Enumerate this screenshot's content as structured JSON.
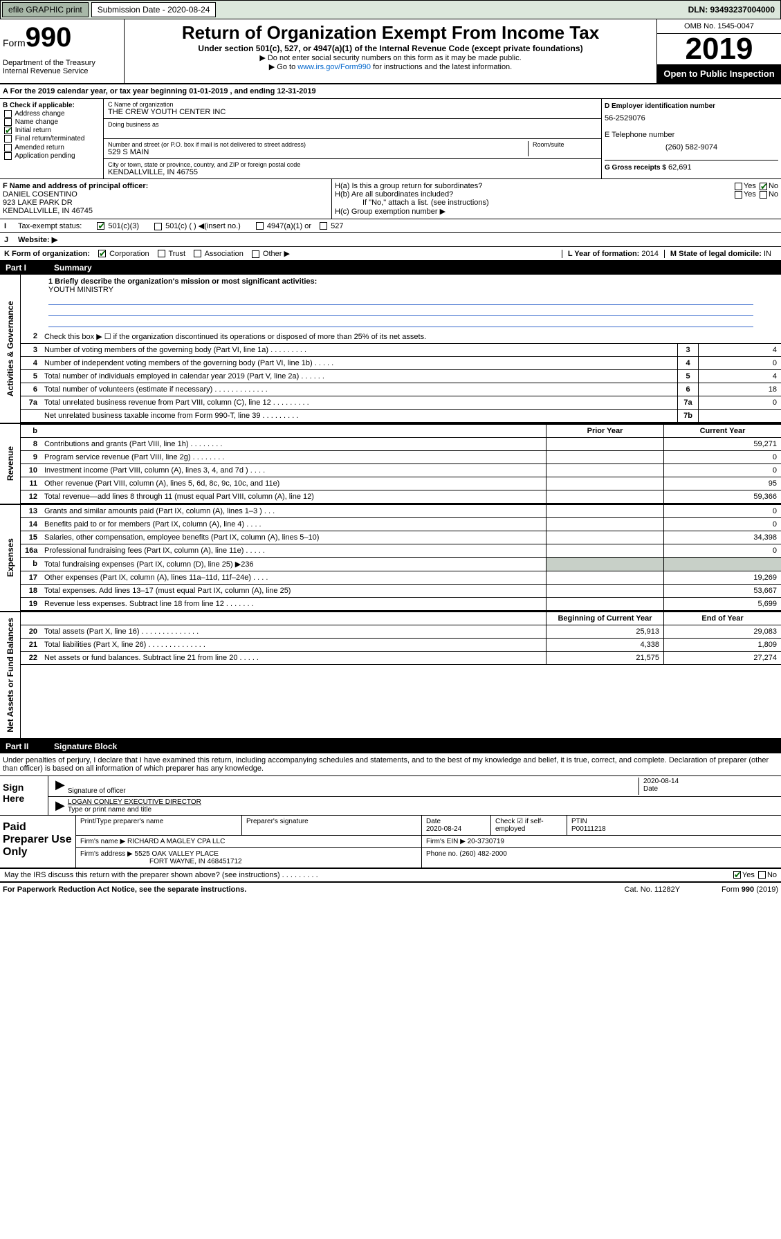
{
  "top_bar": {
    "efile": "efile GRAPHIC print",
    "sub_label": "Submission Date - 2020-08-24",
    "dln": "DLN: 93493237004000"
  },
  "header": {
    "form": "Form",
    "num": "990",
    "dept": "Department of the Treasury Internal Revenue Service",
    "title": "Return of Organization Exempt From Income Tax",
    "sub": "Under section 501(c), 527, or 4947(a)(1) of the Internal Revenue Code (except private foundations)",
    "note1": "▶ Do not enter social security numbers on this form as it may be made public.",
    "note2_pre": "▶ Go to ",
    "note2_link": "www.irs.gov/Form990",
    "note2_post": " for instructions and the latest information.",
    "omb": "OMB No. 1545-0047",
    "year": "2019",
    "open": "Open to Public Inspection"
  },
  "period": "A For the 2019 calendar year, or tax year beginning 01-01-2019   , and ending 12-31-2019",
  "box_b": {
    "title": "B Check if applicable:",
    "addr": "Address change",
    "name": "Name change",
    "initial": "Initial return",
    "final": "Final return/terminated",
    "amended": "Amended return",
    "app": "Application pending"
  },
  "box_c": {
    "name_lbl": "C Name of organization",
    "name": "THE CREW YOUTH CENTER INC",
    "dba_lbl": "Doing business as",
    "street_lbl": "Number and street (or P.O. box if mail is not delivered to street address)",
    "room_lbl": "Room/suite",
    "street": "529 S MAIN",
    "city_lbl": "City or town, state or province, country, and ZIP or foreign postal code",
    "city": "KENDALLVILLE, IN  46755"
  },
  "box_d": {
    "lbl": "D Employer identification number",
    "val": "56-2529076"
  },
  "box_e": {
    "lbl": "E Telephone number",
    "val": "(260) 582-9074"
  },
  "box_g": {
    "lbl": "G Gross receipts $",
    "val": "62,691"
  },
  "box_f": {
    "lbl": "F  Name and address of principal officer:",
    "v1": "DANIEL COSENTINO",
    "v2": "923 LAKE PARK DR",
    "v3": "KENDALLVILLE, IN  46745"
  },
  "box_h": {
    "a": "H(a)  Is this a group return for subordinates?",
    "b": "H(b)  Are all subordinates included?",
    "note": "If \"No,\" attach a list. (see instructions)",
    "c": "H(c)  Group exemption number ▶"
  },
  "tax_status": {
    "lbl": "Tax-exempt status:",
    "o1": "501(c)(3)",
    "o2": "501(c) (  ) ◀(insert no.)",
    "o3": "4947(a)(1) or",
    "o4": "527"
  },
  "website": "Website: ▶",
  "box_k": "K Form of organization:",
  "k_opts": {
    "corp": "Corporation",
    "trust": "Trust",
    "assoc": "Association",
    "other": "Other ▶"
  },
  "box_l": {
    "lbl": "L Year of formation:",
    "val": "2014"
  },
  "box_m": {
    "lbl": "M State of legal domicile:",
    "val": "IN"
  },
  "part1": {
    "num": "Part I",
    "title": "Summary"
  },
  "mission": {
    "q": "1  Briefly describe the organization's mission or most significant activities:",
    "val": "YOUTH MINISTRY"
  },
  "lines_gov": [
    {
      "n": "2",
      "t": "Check this box ▶ ☐  if the organization discontinued its operations or disposed of more than 25% of its net assets."
    },
    {
      "n": "3",
      "t": "Number of voting members of the governing body (Part VI, line 1a)   .    .    .    .    .    .    .    .    .",
      "bn": "3",
      "bv": "4"
    },
    {
      "n": "4",
      "t": "Number of independent voting members of the governing body (Part VI, line 1b)   .    .    .    .    .",
      "bn": "4",
      "bv": "0"
    },
    {
      "n": "5",
      "t": "Total number of individuals employed in calendar year 2019 (Part V, line 2a)   .    .    .    .    .    .",
      "bn": "5",
      "bv": "4"
    },
    {
      "n": "6",
      "t": "Total number of volunteers (estimate if necessary)   .    .    .    .    .    .    .    .    .    .    .    .    .",
      "bn": "6",
      "bv": "18"
    },
    {
      "n": "7a",
      "t": "Total unrelated business revenue from Part VIII, column (C), line 12   .    .    .    .    .    .    .    .    .",
      "bn": "7a",
      "bv": "0"
    },
    {
      "n": "",
      "t": "Net unrelated business taxable income from Form 990-T, line 39   .    .    .    .    .    .    .    .    .",
      "bn": "7b",
      "bv": ""
    }
  ],
  "col_headers": {
    "prior": "Prior Year",
    "current": "Current Year"
  },
  "lines_rev": [
    {
      "n": "8",
      "t": "Contributions and grants (Part VIII, line 1h)   .    .    .    .    .    .    .    .",
      "c1": "",
      "c2": "59,271"
    },
    {
      "n": "9",
      "t": "Program service revenue (Part VIII, line 2g)   .    .    .    .    .    .    .    .",
      "c1": "",
      "c2": "0"
    },
    {
      "n": "10",
      "t": "Investment income (Part VIII, column (A), lines 3, 4, and 7d )   .    .    .    .",
      "c1": "",
      "c2": "0"
    },
    {
      "n": "11",
      "t": "Other revenue (Part VIII, column (A), lines 5, 6d, 8c, 9c, 10c, and 11e)",
      "c1": "",
      "c2": "95"
    },
    {
      "n": "12",
      "t": "Total revenue—add lines 8 through 11 (must equal Part VIII, column (A), line 12)",
      "c1": "",
      "c2": "59,366"
    }
  ],
  "lines_exp": [
    {
      "n": "13",
      "t": "Grants and similar amounts paid (Part IX, column (A), lines 1–3 )   .    .    .",
      "c1": "",
      "c2": "0"
    },
    {
      "n": "14",
      "t": "Benefits paid to or for members (Part IX, column (A), line 4)   .    .    .    .",
      "c1": "",
      "c2": "0"
    },
    {
      "n": "15",
      "t": "Salaries, other compensation, employee benefits (Part IX, column (A), lines 5–10)",
      "c1": "",
      "c2": "34,398"
    },
    {
      "n": "16a",
      "t": "Professional fundraising fees (Part IX, column (A), line 11e)   .    .    .    .    .",
      "c1": "",
      "c2": "0"
    },
    {
      "n": "b",
      "t": "Total fundraising expenses (Part IX, column (D), line 25)  ▶236",
      "c1": "shaded",
      "c2": "shaded"
    },
    {
      "n": "17",
      "t": "Other expenses (Part IX, column (A), lines 11a–11d, 11f–24e)   .    .    .    .",
      "c1": "",
      "c2": "19,269"
    },
    {
      "n": "18",
      "t": "Total expenses. Add lines 13–17 (must equal Part IX, column (A), line 25)",
      "c1": "",
      "c2": "53,667"
    },
    {
      "n": "19",
      "t": "Revenue less expenses. Subtract line 18 from line 12   .    .    .    .    .    .    .",
      "c1": "",
      "c2": "5,699"
    }
  ],
  "col_headers2": {
    "begin": "Beginning of Current Year",
    "end": "End of Year"
  },
  "lines_net": [
    {
      "n": "20",
      "t": "Total assets (Part X, line 16)   .    .    .    .    .    .    .    .    .    .    .    .    .    .",
      "c1": "25,913",
      "c2": "29,083"
    },
    {
      "n": "21",
      "t": "Total liabilities (Part X, line 26)   .    .    .    .    .    .    .    .    .    .    .    .    .    .",
      "c1": "4,338",
      "c2": "1,809"
    },
    {
      "n": "22",
      "t": "Net assets or fund balances. Subtract line 21 from line 20   .    .    .    .    .",
      "c1": "21,575",
      "c2": "27,274"
    }
  ],
  "vert": {
    "gov": "Activities & Governance",
    "rev": "Revenue",
    "exp": "Expenses",
    "net": "Net Assets or Fund Balances"
  },
  "part2": {
    "num": "Part II",
    "title": "Signature Block"
  },
  "penalties": "Under penalties of perjury, I declare that I have examined this return, including accompanying schedules and statements, and to the best of my knowledge and belief, it is true, correct, and complete. Declaration of preparer (other than officer) is based on all information of which preparer has any knowledge.",
  "sign": {
    "lbl": "Sign Here",
    "sig_lbl": "Signature of officer",
    "date": "2020-08-14",
    "date_lbl": "Date",
    "name": "LOGAN CONLEY  EXECUTIVE DIRECTOR",
    "name_lbl": "Type or print name and title"
  },
  "prep": {
    "lbl": "Paid Preparer Use Only",
    "h1": "Print/Type preparer's name",
    "h2": "Preparer's signature",
    "h3": "Date",
    "h3v": "2020-08-24",
    "h4": "Check ☑ if self-employed",
    "h5": "PTIN",
    "h5v": "P00111218",
    "firm_lbl": "Firm's name    ▶",
    "firm": "RICHARD A MAGLEY CPA LLC",
    "ein_lbl": "Firm's EIN ▶",
    "ein": "20-3730719",
    "addr_lbl": "Firm's address ▶",
    "addr1": "5525 OAK VALLEY PLACE",
    "addr2": "FORT WAYNE, IN  468451712",
    "phone_lbl": "Phone no.",
    "phone": "(260) 482-2000"
  },
  "discuss": "May the IRS discuss this return with the preparer shown above? (see instructions)   .    .    .    .    .    .    .    .    .",
  "footer": {
    "l": "For Paperwork Reduction Act Notice, see the separate instructions.",
    "m": "Cat. No. 11282Y",
    "r": "Form 990 (2019)"
  }
}
